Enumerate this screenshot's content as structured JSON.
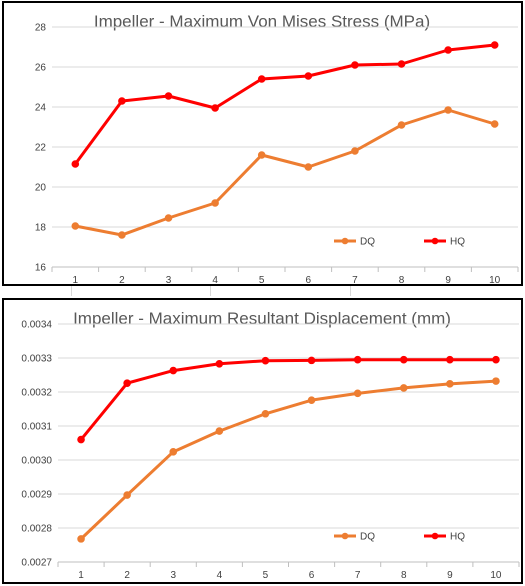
{
  "chart_data": [
    {
      "type": "line",
      "title": "Impeller - Maximum Von Mises Stress (MPa)",
      "xlabel": "",
      "ylabel": "",
      "categories": [
        "1",
        "2",
        "3",
        "4",
        "5",
        "6",
        "7",
        "8",
        "9",
        "10"
      ],
      "ylim": [
        16,
        28
      ],
      "yticks": [
        "16",
        "18",
        "20",
        "22",
        "24",
        "26",
        "28"
      ],
      "grid": true,
      "legend": "bottom-right",
      "series": [
        {
          "name": "DQ",
          "color": "#ed7d31",
          "values": [
            18.05,
            17.6,
            18.45,
            19.2,
            21.6,
            21.0,
            21.8,
            23.1,
            23.85,
            23.15
          ]
        },
        {
          "name": "HQ",
          "color": "#ff0000",
          "values": [
            21.15,
            24.3,
            24.55,
            23.95,
            25.4,
            25.55,
            26.1,
            26.15,
            26.85,
            27.1
          ]
        }
      ]
    },
    {
      "type": "line",
      "title": "Impeller - Maximum Resultant Displacement (mm)",
      "xlabel": "",
      "ylabel": "",
      "categories": [
        "1",
        "2",
        "3",
        "4",
        "5",
        "6",
        "7",
        "8",
        "9",
        "10"
      ],
      "ylim": [
        0.0027,
        0.0034
      ],
      "yticks": [
        "0.0027",
        "0.0028",
        "0.0029",
        "0.0030",
        "0.0031",
        "0.0032",
        "0.0033",
        "0.0034"
      ],
      "grid": true,
      "legend": "bottom-right",
      "series": [
        {
          "name": "DQ",
          "color": "#ed7d31",
          "values": [
            0.002768,
            0.002897,
            0.003024,
            0.003085,
            0.003136,
            0.003176,
            0.003196,
            0.003212,
            0.003224,
            0.003232
          ]
        },
        {
          "name": "HQ",
          "color": "#ff0000",
          "values": [
            0.00306,
            0.003226,
            0.003263,
            0.003283,
            0.003292,
            0.003293,
            0.003295,
            0.003295,
            0.003295,
            0.003295
          ]
        }
      ]
    }
  ]
}
